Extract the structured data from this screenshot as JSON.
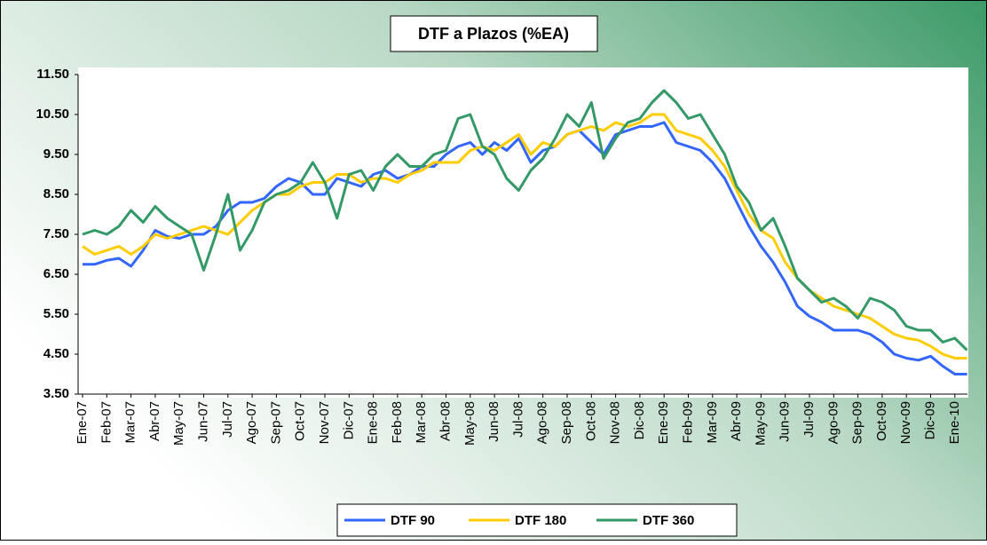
{
  "chart_data": {
    "type": "line",
    "title": "DTF a Plazos (%EA)",
    "categories": [
      "Ene-07",
      null,
      "Feb-07",
      null,
      "Mar-07",
      null,
      "Abr-07",
      null,
      "May-07",
      null,
      "Jun-07",
      null,
      "Jul-07",
      null,
      "Ago-07",
      null,
      "Sep-07",
      null,
      "Oct-07",
      null,
      "Nov-07",
      null,
      "Dic-07",
      null,
      "Ene-08",
      null,
      "Feb-08",
      null,
      "Mar-08",
      null,
      "Abr-08",
      null,
      "May-08",
      null,
      "Jun-08",
      null,
      "Jul-08",
      null,
      "Ago-08",
      null,
      "Sep-08",
      null,
      "Oct-08",
      null,
      "Nov-08",
      null,
      "Dic-08",
      null,
      "Ene-09",
      null,
      "Feb-09",
      null,
      "Mar-09",
      null,
      "Abr-09",
      null,
      "May-09",
      null,
      "Jun-09",
      null,
      "Jul-09",
      null,
      "Ago-09",
      null,
      "Sep-09",
      null,
      "Oct-09",
      null,
      "Nov-09",
      null,
      "Dic-09",
      null,
      "Ene-10",
      null
    ],
    "series": [
      {
        "name": "DTF 90",
        "color": "#3366ff",
        "values": [
          6.75,
          6.75,
          6.85,
          6.9,
          6.7,
          7.1,
          7.6,
          7.45,
          7.4,
          7.5,
          7.5,
          7.7,
          8.1,
          8.3,
          8.3,
          8.4,
          8.7,
          8.9,
          8.8,
          8.5,
          8.5,
          8.9,
          8.8,
          8.7,
          9.0,
          9.1,
          8.9,
          9.0,
          9.2,
          9.2,
          9.5,
          9.7,
          9.8,
          9.5,
          9.8,
          9.6,
          9.9,
          9.3,
          9.6,
          9.7,
          10.0,
          10.1,
          9.8,
          9.5,
          10.0,
          10.1,
          10.2,
          10.2,
          10.3,
          9.8,
          9.7,
          9.6,
          9.3,
          8.9,
          8.3,
          7.7,
          7.2,
          6.8,
          6.3,
          5.7,
          5.45,
          5.3,
          5.1,
          5.1,
          5.1,
          5.0,
          4.8,
          4.5,
          4.4,
          4.35,
          4.45,
          4.2,
          4.0,
          4.0
        ]
      },
      {
        "name": "DTF 180",
        "color": "#ffcc00",
        "values": [
          7.2,
          7.0,
          7.1,
          7.2,
          7.0,
          7.2,
          7.5,
          7.4,
          7.5,
          7.6,
          7.7,
          7.6,
          7.5,
          7.8,
          8.1,
          8.3,
          8.5,
          8.5,
          8.7,
          8.8,
          8.8,
          9.0,
          9.0,
          8.8,
          8.9,
          8.9,
          8.8,
          9.0,
          9.1,
          9.3,
          9.3,
          9.3,
          9.6,
          9.7,
          9.6,
          9.8,
          10.0,
          9.5,
          9.8,
          9.7,
          10.0,
          10.1,
          10.2,
          10.1,
          10.3,
          10.2,
          10.3,
          10.5,
          10.5,
          10.1,
          10.0,
          9.9,
          9.6,
          9.2,
          8.6,
          8.0,
          7.6,
          7.4,
          6.8,
          6.4,
          6.1,
          5.9,
          5.7,
          5.6,
          5.5,
          5.4,
          5.2,
          5.0,
          4.9,
          4.85,
          4.7,
          4.5,
          4.4,
          4.4
        ]
      },
      {
        "name": "DTF 360",
        "color": "#339966",
        "values": [
          7.5,
          7.6,
          7.5,
          7.7,
          8.1,
          7.8,
          8.2,
          7.9,
          7.7,
          7.5,
          6.6,
          7.5,
          8.5,
          7.1,
          7.6,
          8.3,
          8.5,
          8.6,
          8.8,
          9.3,
          8.8,
          7.9,
          9.0,
          9.1,
          8.6,
          9.2,
          9.5,
          9.2,
          9.2,
          9.5,
          9.6,
          10.4,
          10.5,
          9.7,
          9.5,
          8.9,
          8.6,
          9.1,
          9.4,
          9.9,
          10.5,
          10.2,
          10.8,
          9.4,
          9.9,
          10.3,
          10.4,
          10.8,
          11.1,
          10.8,
          10.4,
          10.5,
          10.0,
          9.5,
          8.7,
          8.3,
          7.6,
          7.9,
          7.2,
          6.4,
          6.1,
          5.8,
          5.9,
          5.7,
          5.4,
          5.9,
          5.8,
          5.6,
          5.2,
          5.1,
          5.1,
          4.8,
          4.9,
          4.6
        ]
      }
    ],
    "ylim": [
      3.5,
      11.5
    ],
    "yticks": [
      {
        "value": 3.5,
        "label": "3.50"
      },
      {
        "value": 4.5,
        "label": "4.50"
      },
      {
        "value": 5.5,
        "label": "5.50"
      },
      {
        "value": 6.5,
        "label": "6.50"
      },
      {
        "value": 7.5,
        "label": "7.50"
      },
      {
        "value": 8.5,
        "label": "8.50"
      },
      {
        "value": 9.5,
        "label": "9.50"
      },
      {
        "value": 10.5,
        "label": "10.50"
      },
      {
        "value": 11.5,
        "label": "11.50"
      }
    ],
    "legend": "bottom"
  }
}
